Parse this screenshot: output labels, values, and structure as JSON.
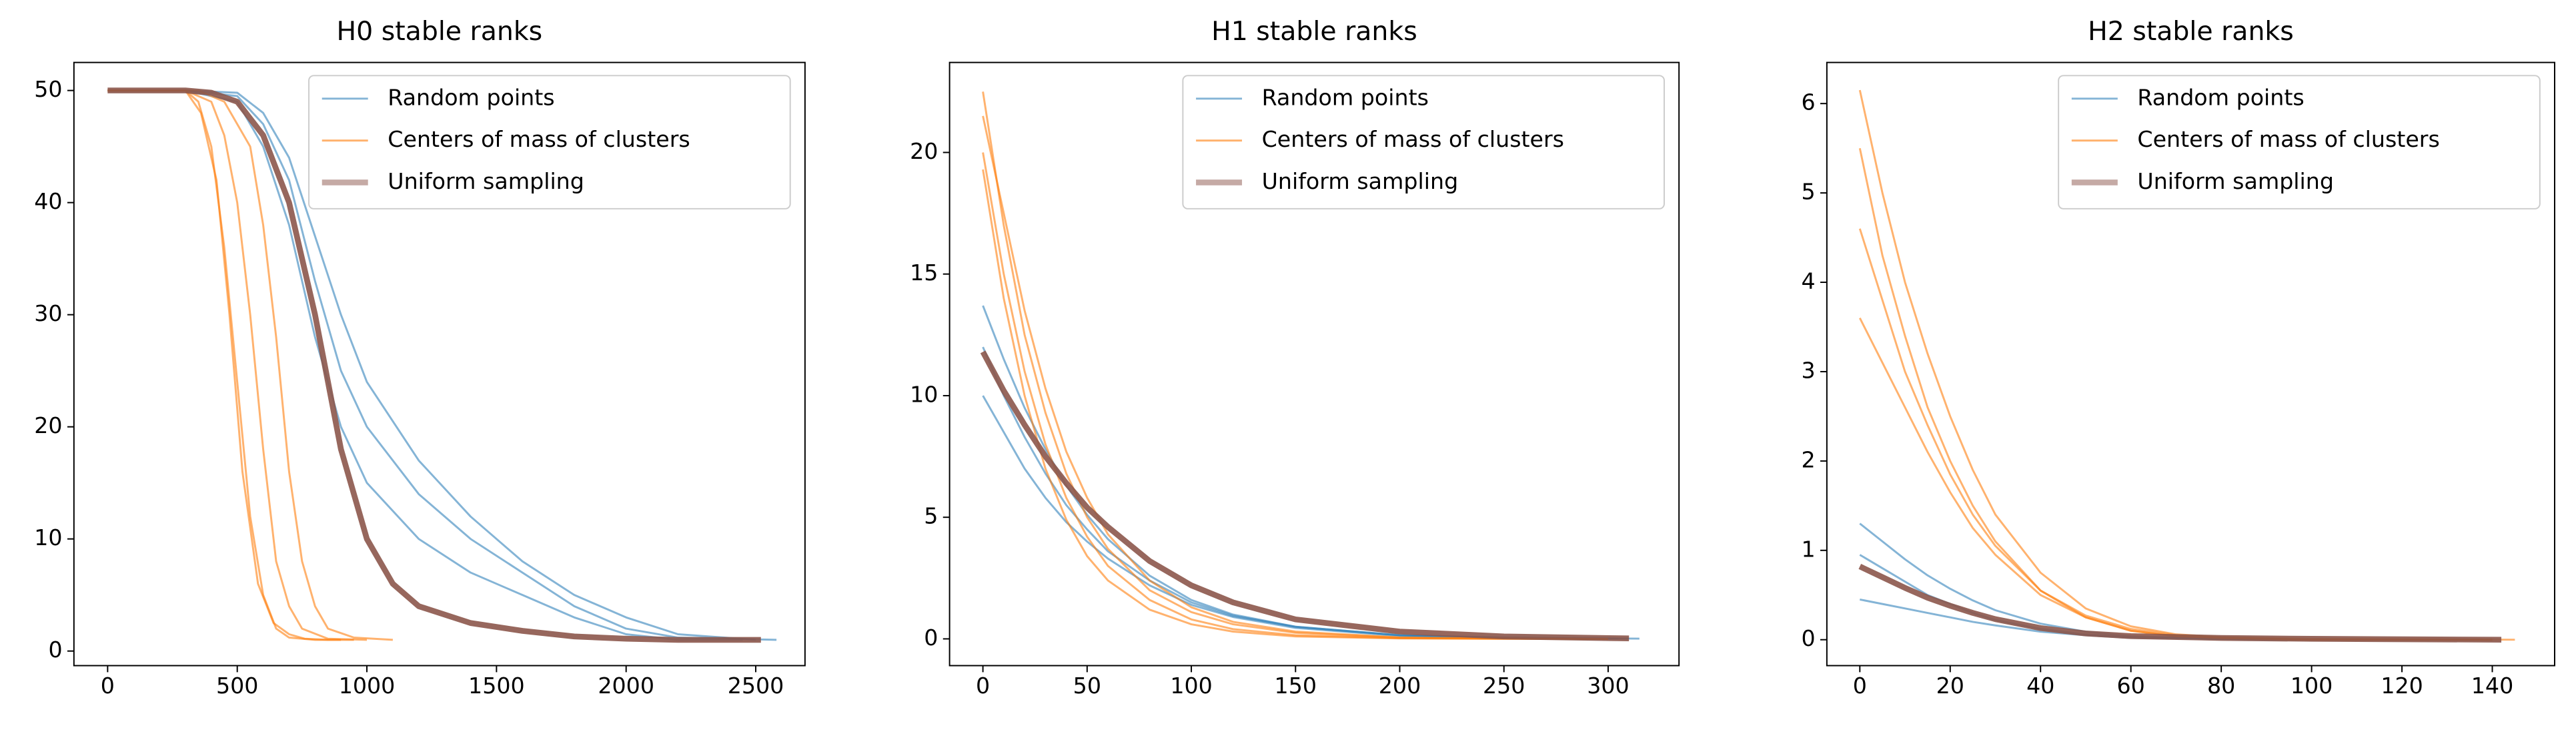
{
  "chart_data": [
    {
      "type": "line",
      "title": "H0 stable ranks",
      "xlim": [
        -130,
        2690
      ],
      "xticks": [
        0,
        500,
        1000,
        1500,
        2000,
        2500
      ],
      "ylim": [
        -1.3,
        52.5
      ],
      "yticks": [
        0,
        10,
        20,
        30,
        40,
        50
      ],
      "legend": "upper right",
      "series": [
        {
          "name": "Random points",
          "color": "#1f77b4",
          "lines": [
            {
              "x": [
                0,
                300,
                500,
                600,
                700,
                800,
                900,
                1000,
                1200,
                1400,
                1600,
                1800,
                2000,
                2200,
                2580
              ],
              "values": [
                50,
                50,
                49.5,
                47,
                42,
                33,
                25,
                20,
                14,
                10,
                7,
                4,
                2,
                1.2,
                1
              ]
            },
            {
              "x": [
                0,
                300,
                500,
                600,
                700,
                800,
                900,
                1000,
                1200,
                1400,
                1600,
                1800,
                2000,
                2200,
                2450
              ],
              "values": [
                50,
                50,
                49,
                45,
                38,
                28,
                20,
                15,
                10,
                7,
                5,
                3,
                1.5,
                1,
                1
              ]
            },
            {
              "x": [
                0,
                300,
                500,
                600,
                700,
                800,
                900,
                1000,
                1200,
                1400,
                1600,
                1800,
                2000,
                2200,
                2500
              ],
              "values": [
                50,
                50,
                49.8,
                48,
                44,
                37,
                30,
                24,
                17,
                12,
                8,
                5,
                3,
                1.5,
                1
              ]
            }
          ]
        },
        {
          "name": "Centers of mass of clusters",
          "color": "#ff7f0e",
          "lines": [
            {
              "x": [
                0,
                300,
                350,
                400,
                450,
                500,
                550,
                600,
                650,
                700,
                800,
                900
              ],
              "values": [
                50,
                50,
                49,
                45,
                36,
                24,
                12,
                5,
                2,
                1.2,
                1,
                1
              ]
            },
            {
              "x": [
                0,
                300,
                400,
                450,
                500,
                550,
                600,
                650,
                700,
                750,
                850,
                1000
              ],
              "values": [
                50,
                50,
                49,
                46,
                40,
                30,
                18,
                8,
                4,
                2,
                1.1,
                1
              ]
            },
            {
              "x": [
                0,
                350,
                450,
                550,
                600,
                650,
                700,
                750,
                800,
                850,
                950,
                1100
              ],
              "values": [
                50,
                50,
                49,
                45,
                38,
                28,
                16,
                8,
                4,
                2,
                1.2,
                1
              ]
            },
            {
              "x": [
                0,
                300,
                360,
                420,
                470,
                520,
                580,
                640,
                700,
                760,
                850,
                950
              ],
              "values": [
                50,
                50,
                48,
                42,
                30,
                16,
                6,
                2.5,
                1.5,
                1.1,
                1,
                1
              ]
            }
          ]
        },
        {
          "name": "Uniform sampling",
          "color": "#8c564b",
          "lines": [
            {
              "x": [
                0,
                300,
                400,
                500,
                600,
                700,
                800,
                900,
                1000,
                1100,
                1200,
                1400,
                1600,
                1800,
                2000,
                2200,
                2520
              ],
              "values": [
                50,
                50,
                49.8,
                49,
                46,
                40,
                30,
                18,
                10,
                6,
                4,
                2.5,
                1.8,
                1.3,
                1.1,
                1,
                1
              ]
            }
          ]
        }
      ]
    },
    {
      "type": "line",
      "title": "H1 stable ranks",
      "xlim": [
        -16,
        334
      ],
      "xticks": [
        0,
        50,
        100,
        150,
        200,
        250,
        300
      ],
      "ylim": [
        -1.1,
        23.7
      ],
      "yticks": [
        0,
        5,
        10,
        15,
        20
      ],
      "legend": "upper right",
      "series": [
        {
          "name": "Random points",
          "color": "#1f77b4",
          "lines": [
            {
              "x": [
                0,
                10,
                20,
                30,
                40,
                50,
                60,
                80,
                100,
                120,
                150,
                200,
                250,
                315
              ],
              "values": [
                13.7,
                11.5,
                9.5,
                7.8,
                6.3,
                5.1,
                4.1,
                2.6,
                1.6,
                1.0,
                0.5,
                0.15,
                0.05,
                0.01
              ]
            },
            {
              "x": [
                0,
                10,
                20,
                30,
                40,
                50,
                60,
                80,
                100,
                120,
                150,
                200,
                250,
                310
              ],
              "values": [
                10,
                8.5,
                7,
                5.8,
                4.8,
                4,
                3.3,
                2.2,
                1.4,
                0.9,
                0.45,
                0.12,
                0.04,
                0.01
              ]
            },
            {
              "x": [
                0,
                10,
                20,
                30,
                40,
                50,
                60,
                80,
                100,
                120,
                150,
                200,
                250,
                305
              ],
              "values": [
                12,
                10,
                8.3,
                6.8,
                5.5,
                4.5,
                3.6,
                2.4,
                1.5,
                0.95,
                0.5,
                0.15,
                0.05,
                0.01
              ]
            }
          ]
        },
        {
          "name": "Centers of mass of clusters",
          "color": "#ff7f0e",
          "lines": [
            {
              "x": [
                0,
                10,
                20,
                30,
                40,
                50,
                60,
                80,
                100,
                120,
                150,
                200,
                250,
                300
              ],
              "values": [
                22.5,
                17,
                12.5,
                9.3,
                6.8,
                5,
                3.7,
                2,
                1.1,
                0.6,
                0.25,
                0.05,
                0.01,
                0
              ]
            },
            {
              "x": [
                0,
                10,
                20,
                30,
                40,
                50,
                60,
                80,
                100,
                120,
                150,
                200,
                250,
                300
              ],
              "values": [
                20,
                15,
                11,
                8,
                5.8,
                4.2,
                3,
                1.6,
                0.8,
                0.4,
                0.15,
                0.03,
                0.01,
                0
              ]
            },
            {
              "x": [
                0,
                10,
                20,
                30,
                40,
                50,
                60,
                80,
                100,
                120,
                150,
                200,
                250,
                300
              ],
              "values": [
                21.5,
                17.5,
                13.5,
                10.3,
                7.7,
                5.8,
                4.3,
                2.4,
                1.3,
                0.7,
                0.3,
                0.06,
                0.01,
                0
              ]
            },
            {
              "x": [
                0,
                10,
                20,
                30,
                40,
                50,
                60,
                80,
                100,
                120,
                150,
                200,
                250,
                300
              ],
              "values": [
                19.3,
                14,
                10,
                7,
                4.9,
                3.4,
                2.4,
                1.2,
                0.6,
                0.3,
                0.1,
                0.02,
                0,
                0
              ]
            }
          ]
        },
        {
          "name": "Uniform sampling",
          "color": "#8c564b",
          "lines": [
            {
              "x": [
                0,
                10,
                20,
                30,
                40,
                50,
                60,
                80,
                100,
                120,
                150,
                200,
                250,
                310
              ],
              "values": [
                11.8,
                10.2,
                8.8,
                7.5,
                6.4,
                5.4,
                4.6,
                3.2,
                2.2,
                1.5,
                0.8,
                0.3,
                0.1,
                0.02
              ]
            }
          ]
        }
      ]
    },
    {
      "type": "line",
      "title": "H2 stable ranks",
      "xlim": [
        -7.3,
        153.8
      ],
      "xticks": [
        0,
        20,
        40,
        60,
        80,
        100,
        120,
        140
      ],
      "ylim": [
        -0.29,
        6.46
      ],
      "yticks": [
        0,
        1,
        2,
        3,
        4,
        5,
        6
      ],
      "legend": "upper right",
      "series": [
        {
          "name": "Random points",
          "color": "#1f77b4",
          "lines": [
            {
              "x": [
                0,
                5,
                10,
                15,
                20,
                25,
                30,
                40,
                50,
                60,
                80,
                100,
                140
              ],
              "values": [
                1.3,
                1.1,
                0.9,
                0.72,
                0.57,
                0.44,
                0.33,
                0.18,
                0.09,
                0.04,
                0.01,
                0,
                0
              ]
            },
            {
              "x": [
                0,
                5,
                10,
                15,
                20,
                25,
                30,
                40,
                50,
                60,
                80,
                100,
                138
              ],
              "values": [
                0.95,
                0.8,
                0.65,
                0.5,
                0.4,
                0.3,
                0.22,
                0.12,
                0.06,
                0.03,
                0.01,
                0,
                0
              ]
            },
            {
              "x": [
                0,
                5,
                10,
                15,
                20,
                25,
                30,
                40,
                50,
                60,
                80,
                100,
                136
              ],
              "values": [
                0.45,
                0.4,
                0.35,
                0.3,
                0.25,
                0.2,
                0.16,
                0.09,
                0.05,
                0.02,
                0.01,
                0,
                0
              ]
            }
          ]
        },
        {
          "name": "Centers of mass of clusters",
          "color": "#ff7f0e",
          "lines": [
            {
              "x": [
                0,
                5,
                10,
                15,
                20,
                25,
                30,
                40,
                50,
                60,
                70,
                80,
                100,
                145
              ],
              "values": [
                6.15,
                5,
                4,
                3.2,
                2.5,
                1.9,
                1.4,
                0.75,
                0.35,
                0.15,
                0.06,
                0.03,
                0.01,
                0
              ]
            },
            {
              "x": [
                0,
                5,
                10,
                15,
                20,
                25,
                30,
                40,
                50,
                60,
                70,
                80,
                100,
                140
              ],
              "values": [
                5.5,
                4.3,
                3.4,
                2.6,
                2,
                1.5,
                1.1,
                0.55,
                0.25,
                0.1,
                0.04,
                0.02,
                0,
                0
              ]
            },
            {
              "x": [
                0,
                5,
                10,
                15,
                20,
                25,
                30,
                40,
                50,
                60,
                70,
                80,
                100,
                140
              ],
              "values": [
                4.6,
                3.8,
                3,
                2.4,
                1.85,
                1.4,
                1.05,
                0.55,
                0.27,
                0.12,
                0.05,
                0.02,
                0,
                0
              ]
            },
            {
              "x": [
                0,
                5,
                10,
                15,
                20,
                25,
                30,
                40,
                50,
                60,
                70,
                80,
                100,
                140
              ],
              "values": [
                3.6,
                3.1,
                2.6,
                2.1,
                1.65,
                1.25,
                0.95,
                0.5,
                0.25,
                0.1,
                0.04,
                0.02,
                0,
                0
              ]
            }
          ]
        },
        {
          "name": "Uniform sampling",
          "color": "#8c564b",
          "lines": [
            {
              "x": [
                0,
                5,
                10,
                15,
                20,
                25,
                30,
                40,
                50,
                60,
                80,
                100,
                142
              ],
              "values": [
                0.82,
                0.7,
                0.58,
                0.47,
                0.38,
                0.3,
                0.23,
                0.13,
                0.07,
                0.04,
                0.02,
                0.01,
                0
              ]
            }
          ]
        }
      ]
    }
  ]
}
